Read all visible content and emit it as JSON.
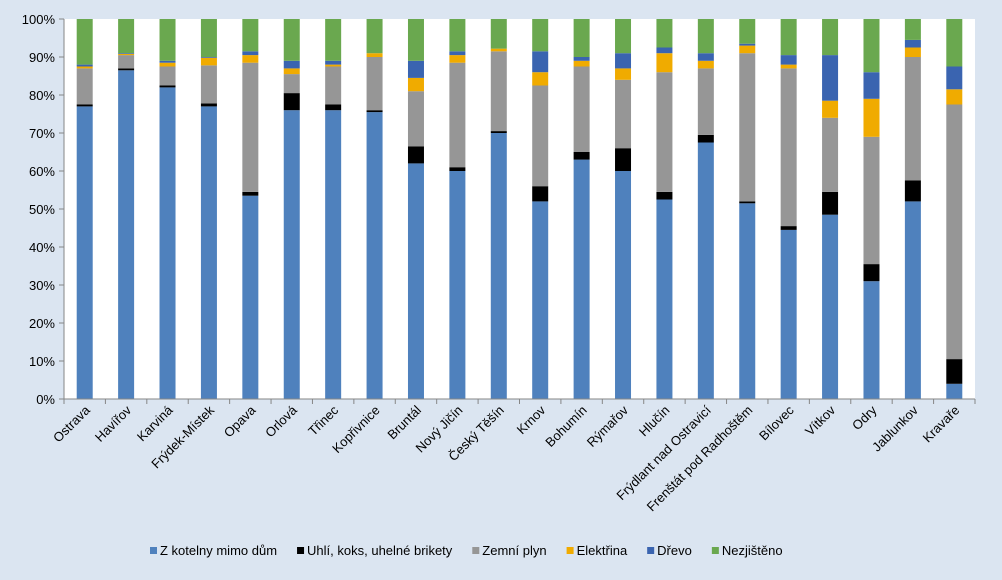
{
  "chart_data": {
    "type": "bar",
    "stacked": true,
    "percent": true,
    "ylim": [
      0,
      100
    ],
    "y_ticks": [
      "0%",
      "10%",
      "20%",
      "30%",
      "40%",
      "50%",
      "60%",
      "70%",
      "80%",
      "90%",
      "100%"
    ],
    "grid": false,
    "legend_position": "bottom",
    "categories": [
      "Ostrava",
      "Havířov",
      "Karviná",
      "Frýdek-Místek",
      "Opava",
      "Orlová",
      "Třinec",
      "Kopřivnice",
      "Bruntál",
      "Nový Jičín",
      "Český Těšín",
      "Krnov",
      "Bohumín",
      "Rýmařov",
      "Hlučín",
      "Frýdlant nad Ostravicí",
      "Frenštát pod Radhoštěm",
      "Bílovec",
      "Vítkov",
      "Odry",
      "Jablunkov",
      "Kravaře"
    ],
    "series": [
      {
        "name": "Z kotelny mimo dům",
        "color": "#4f81bd",
        "values": [
          77.0,
          86.5,
          82.0,
          77.0,
          53.5,
          76.0,
          76.0,
          75.5,
          62.0,
          60.0,
          70.0,
          52.0,
          63.0,
          60.0,
          52.5,
          67.5,
          51.5,
          44.5,
          48.5,
          31.0,
          52.0,
          4.0
        ]
      },
      {
        "name": "Uhlí, koks, uhelné brikety",
        "color": "#000000",
        "values": [
          0.5,
          0.5,
          0.5,
          0.8,
          1.0,
          4.5,
          1.5,
          0.5,
          4.5,
          1.0,
          0.5,
          4.0,
          2.0,
          6.0,
          2.0,
          2.0,
          0.5,
          1.0,
          6.0,
          4.5,
          5.5,
          6.5
        ]
      },
      {
        "name": "Zemní plyn",
        "color": "#969696",
        "values": [
          9.5,
          3.5,
          5.0,
          10.0,
          34.0,
          5.0,
          10.0,
          14.0,
          14.5,
          27.5,
          21.0,
          26.5,
          22.5,
          18.0,
          31.5,
          17.5,
          39.0,
          41.5,
          19.5,
          33.5,
          32.5,
          67.0
        ]
      },
      {
        "name": "Elektřina",
        "color": "#f0ab00",
        "values": [
          0.5,
          0.3,
          1.0,
          2.0,
          2.0,
          1.5,
          0.5,
          1.0,
          3.5,
          2.0,
          0.7,
          3.5,
          1.5,
          3.0,
          5.0,
          2.0,
          2.0,
          1.0,
          4.5,
          10.0,
          2.5,
          4.0
        ]
      },
      {
        "name": "Dřevo",
        "color": "#3a64b0",
        "values": [
          0.5,
          0.2,
          0.5,
          0.2,
          1.0,
          2.0,
          1.0,
          0.0,
          4.5,
          1.0,
          0.0,
          5.5,
          1.0,
          4.0,
          1.5,
          2.0,
          0.5,
          2.5,
          12.0,
          7.0,
          2.0,
          6.0
        ]
      },
      {
        "name": "Nezjištěno",
        "color": "#6aa84f",
        "values": [
          12.0,
          9.0,
          11.0,
          10.0,
          8.5,
          11.0,
          11.0,
          9.0,
          11.0,
          8.5,
          7.8,
          8.5,
          10.0,
          9.0,
          7.5,
          9.0,
          6.5,
          9.5,
          9.5,
          14.0,
          5.5,
          12.5
        ]
      }
    ]
  }
}
